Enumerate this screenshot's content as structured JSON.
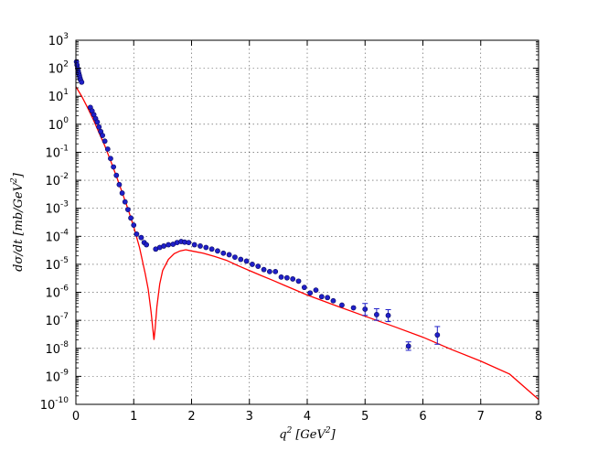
{
  "chart_data": {
    "type": "scatter",
    "title": "",
    "xlabel_main": "q",
    "xlabel_sup": "2",
    "xlabel_unit": "[GeV",
    "xlabel_unit_sup": "2",
    "xlabel_close": "]",
    "ylabel_main": "dσ/dt [mb/GeV",
    "ylabel_sup": "2",
    "ylabel_close": "]",
    "xlim": [
      0,
      8
    ],
    "ylim_log10": [
      -10,
      3
    ],
    "log_y": true,
    "grid": true,
    "x_ticks": [
      "0",
      "1",
      "2",
      "3",
      "4",
      "5",
      "6",
      "7",
      "8"
    ],
    "y_ticks": [
      {
        "base": "10",
        "exp": "-10"
      },
      {
        "base": "10",
        "exp": "-9"
      },
      {
        "base": "10",
        "exp": "-8"
      },
      {
        "base": "10",
        "exp": "-7"
      },
      {
        "base": "10",
        "exp": "-6"
      },
      {
        "base": "10",
        "exp": "-5"
      },
      {
        "base": "10",
        "exp": "-4"
      },
      {
        "base": "10",
        "exp": "-3"
      },
      {
        "base": "10",
        "exp": "-2"
      },
      {
        "base": "10",
        "exp": "-1"
      },
      {
        "base": "10",
        "exp": "0"
      },
      {
        "base": "10",
        "exp": "1"
      },
      {
        "base": "10",
        "exp": "2"
      },
      {
        "base": "10",
        "exp": "3"
      }
    ],
    "colors": {
      "data": "#1f1fc8",
      "model": "#ff0000"
    },
    "series": [
      {
        "kind": "data_points",
        "points": [
          [
            0.01,
            170
          ],
          [
            0.02,
            130
          ],
          [
            0.03,
            100
          ],
          [
            0.04,
            80
          ],
          [
            0.05,
            65
          ],
          [
            0.06,
            55
          ],
          [
            0.07,
            45
          ],
          [
            0.08,
            38
          ],
          [
            0.1,
            32
          ],
          [
            0.25,
            4
          ],
          [
            0.28,
            3
          ],
          [
            0.31,
            2.2
          ],
          [
            0.34,
            1.6
          ],
          [
            0.37,
            1.2
          ],
          [
            0.4,
            0.8
          ],
          [
            0.43,
            0.55
          ],
          [
            0.46,
            0.4
          ],
          [
            0.5,
            0.25
          ],
          [
            0.55,
            0.13
          ],
          [
            0.6,
            0.06
          ],
          [
            0.65,
            0.03
          ],
          [
            0.7,
            0.015
          ],
          [
            0.75,
            0.007
          ],
          [
            0.8,
            0.0035
          ],
          [
            0.85,
            0.0017
          ],
          [
            0.9,
            0.0009
          ],
          [
            0.95,
            0.00045
          ],
          [
            1.0,
            0.00025
          ],
          [
            1.05,
            0.00012
          ],
          [
            1.13,
            9e-05
          ],
          [
            1.18,
            6e-05
          ],
          [
            1.22,
            5e-05
          ],
          [
            1.38,
            3.5e-05
          ],
          [
            1.45,
            4e-05
          ],
          [
            1.52,
            4.5e-05
          ],
          [
            1.6,
            5e-05
          ],
          [
            1.68,
            5.2e-05
          ],
          [
            1.75,
            6e-05
          ],
          [
            1.82,
            6.5e-05
          ],
          [
            1.88,
            6.2e-05
          ],
          [
            1.95,
            6e-05
          ],
          [
            2.05,
            5e-05
          ],
          [
            2.15,
            4.5e-05
          ],
          [
            2.25,
            4e-05
          ],
          [
            2.35,
            3.5e-05
          ],
          [
            2.45,
            3e-05
          ],
          [
            2.55,
            2.5e-05
          ],
          [
            2.65,
            2.2e-05
          ],
          [
            2.75,
            1.8e-05
          ],
          [
            2.85,
            1.5e-05
          ],
          [
            2.95,
            1.3e-05
          ],
          [
            3.05,
            1e-05
          ],
          [
            3.15,
            8.5e-06
          ],
          [
            3.25,
            6.5e-06
          ],
          [
            3.35,
            5.5e-06
          ],
          [
            3.45,
            5.5e-06
          ],
          [
            3.55,
            3.5e-06
          ],
          [
            3.65,
            3.3e-06
          ],
          [
            3.75,
            3e-06
          ],
          [
            3.85,
            2.5e-06
          ],
          [
            3.95,
            1.5e-06
          ],
          [
            4.05,
            9.5e-07
          ],
          [
            4.15,
            1.2e-06
          ],
          [
            4.25,
            7e-07
          ],
          [
            4.35,
            6.5e-07
          ],
          [
            4.45,
            5e-07
          ],
          [
            4.6,
            3.5e-07
          ],
          [
            4.8,
            2.8e-07
          ],
          [
            5.0,
            2.5e-07
          ],
          [
            5.2,
            1.6e-07
          ],
          [
            5.4,
            1.5e-07
          ],
          [
            5.75,
            1.2e-08
          ],
          [
            6.25,
            3e-08
          ]
        ],
        "error_low": [
          [
            5.0,
            1.5e-07
          ],
          [
            5.2,
            1e-07
          ],
          [
            5.4,
            9e-08
          ],
          [
            5.75,
            8.5e-09
          ],
          [
            6.25,
            1.4e-08
          ]
        ],
        "error_high": [
          [
            5.0,
            4e-07
          ],
          [
            5.2,
            2.6e-07
          ],
          [
            5.4,
            2.4e-07
          ],
          [
            5.75,
            1.7e-08
          ],
          [
            6.25,
            6e-08
          ]
        ]
      },
      {
        "kind": "model_curve",
        "points": [
          [
            0.0,
            22
          ],
          [
            0.1,
            10
          ],
          [
            0.2,
            4
          ],
          [
            0.3,
            1.5
          ],
          [
            0.4,
            0.5
          ],
          [
            0.5,
            0.17
          ],
          [
            0.6,
            0.05
          ],
          [
            0.7,
            0.014
          ],
          [
            0.8,
            0.0037
          ],
          [
            0.9,
            0.00095
          ],
          [
            1.0,
            0.00022
          ],
          [
            1.1,
            4e-05
          ],
          [
            1.2,
            4.5e-06
          ],
          [
            1.25,
            1.3e-06
          ],
          [
            1.3,
            2e-07
          ],
          [
            1.33,
            5e-08
          ],
          [
            1.35,
            2e-08
          ],
          [
            1.37,
            5e-08
          ],
          [
            1.4,
            3e-07
          ],
          [
            1.45,
            2e-06
          ],
          [
            1.5,
            6e-06
          ],
          [
            1.6,
            1.5e-05
          ],
          [
            1.7,
            2.4e-05
          ],
          [
            1.8,
            3e-05
          ],
          [
            1.9,
            3.3e-05
          ],
          [
            2.0,
            3e-05
          ],
          [
            2.2,
            2.5e-05
          ],
          [
            2.4,
            1.9e-05
          ],
          [
            2.6,
            1.4e-05
          ],
          [
            2.8,
            9e-06
          ],
          [
            3.0,
            6e-06
          ],
          [
            3.2,
            4e-06
          ],
          [
            3.4,
            2.7e-06
          ],
          [
            3.6,
            1.8e-06
          ],
          [
            3.8,
            1.2e-06
          ],
          [
            4.0,
            8e-07
          ],
          [
            4.5,
            3.3e-07
          ],
          [
            5.0,
            1.4e-07
          ],
          [
            5.5,
            6e-08
          ],
          [
            6.0,
            2.5e-08
          ],
          [
            6.5,
            9e-09
          ],
          [
            7.0,
            3.5e-09
          ],
          [
            7.5,
            1.2e-09
          ],
          [
            8.0,
            1.5e-10
          ]
        ]
      }
    ]
  }
}
